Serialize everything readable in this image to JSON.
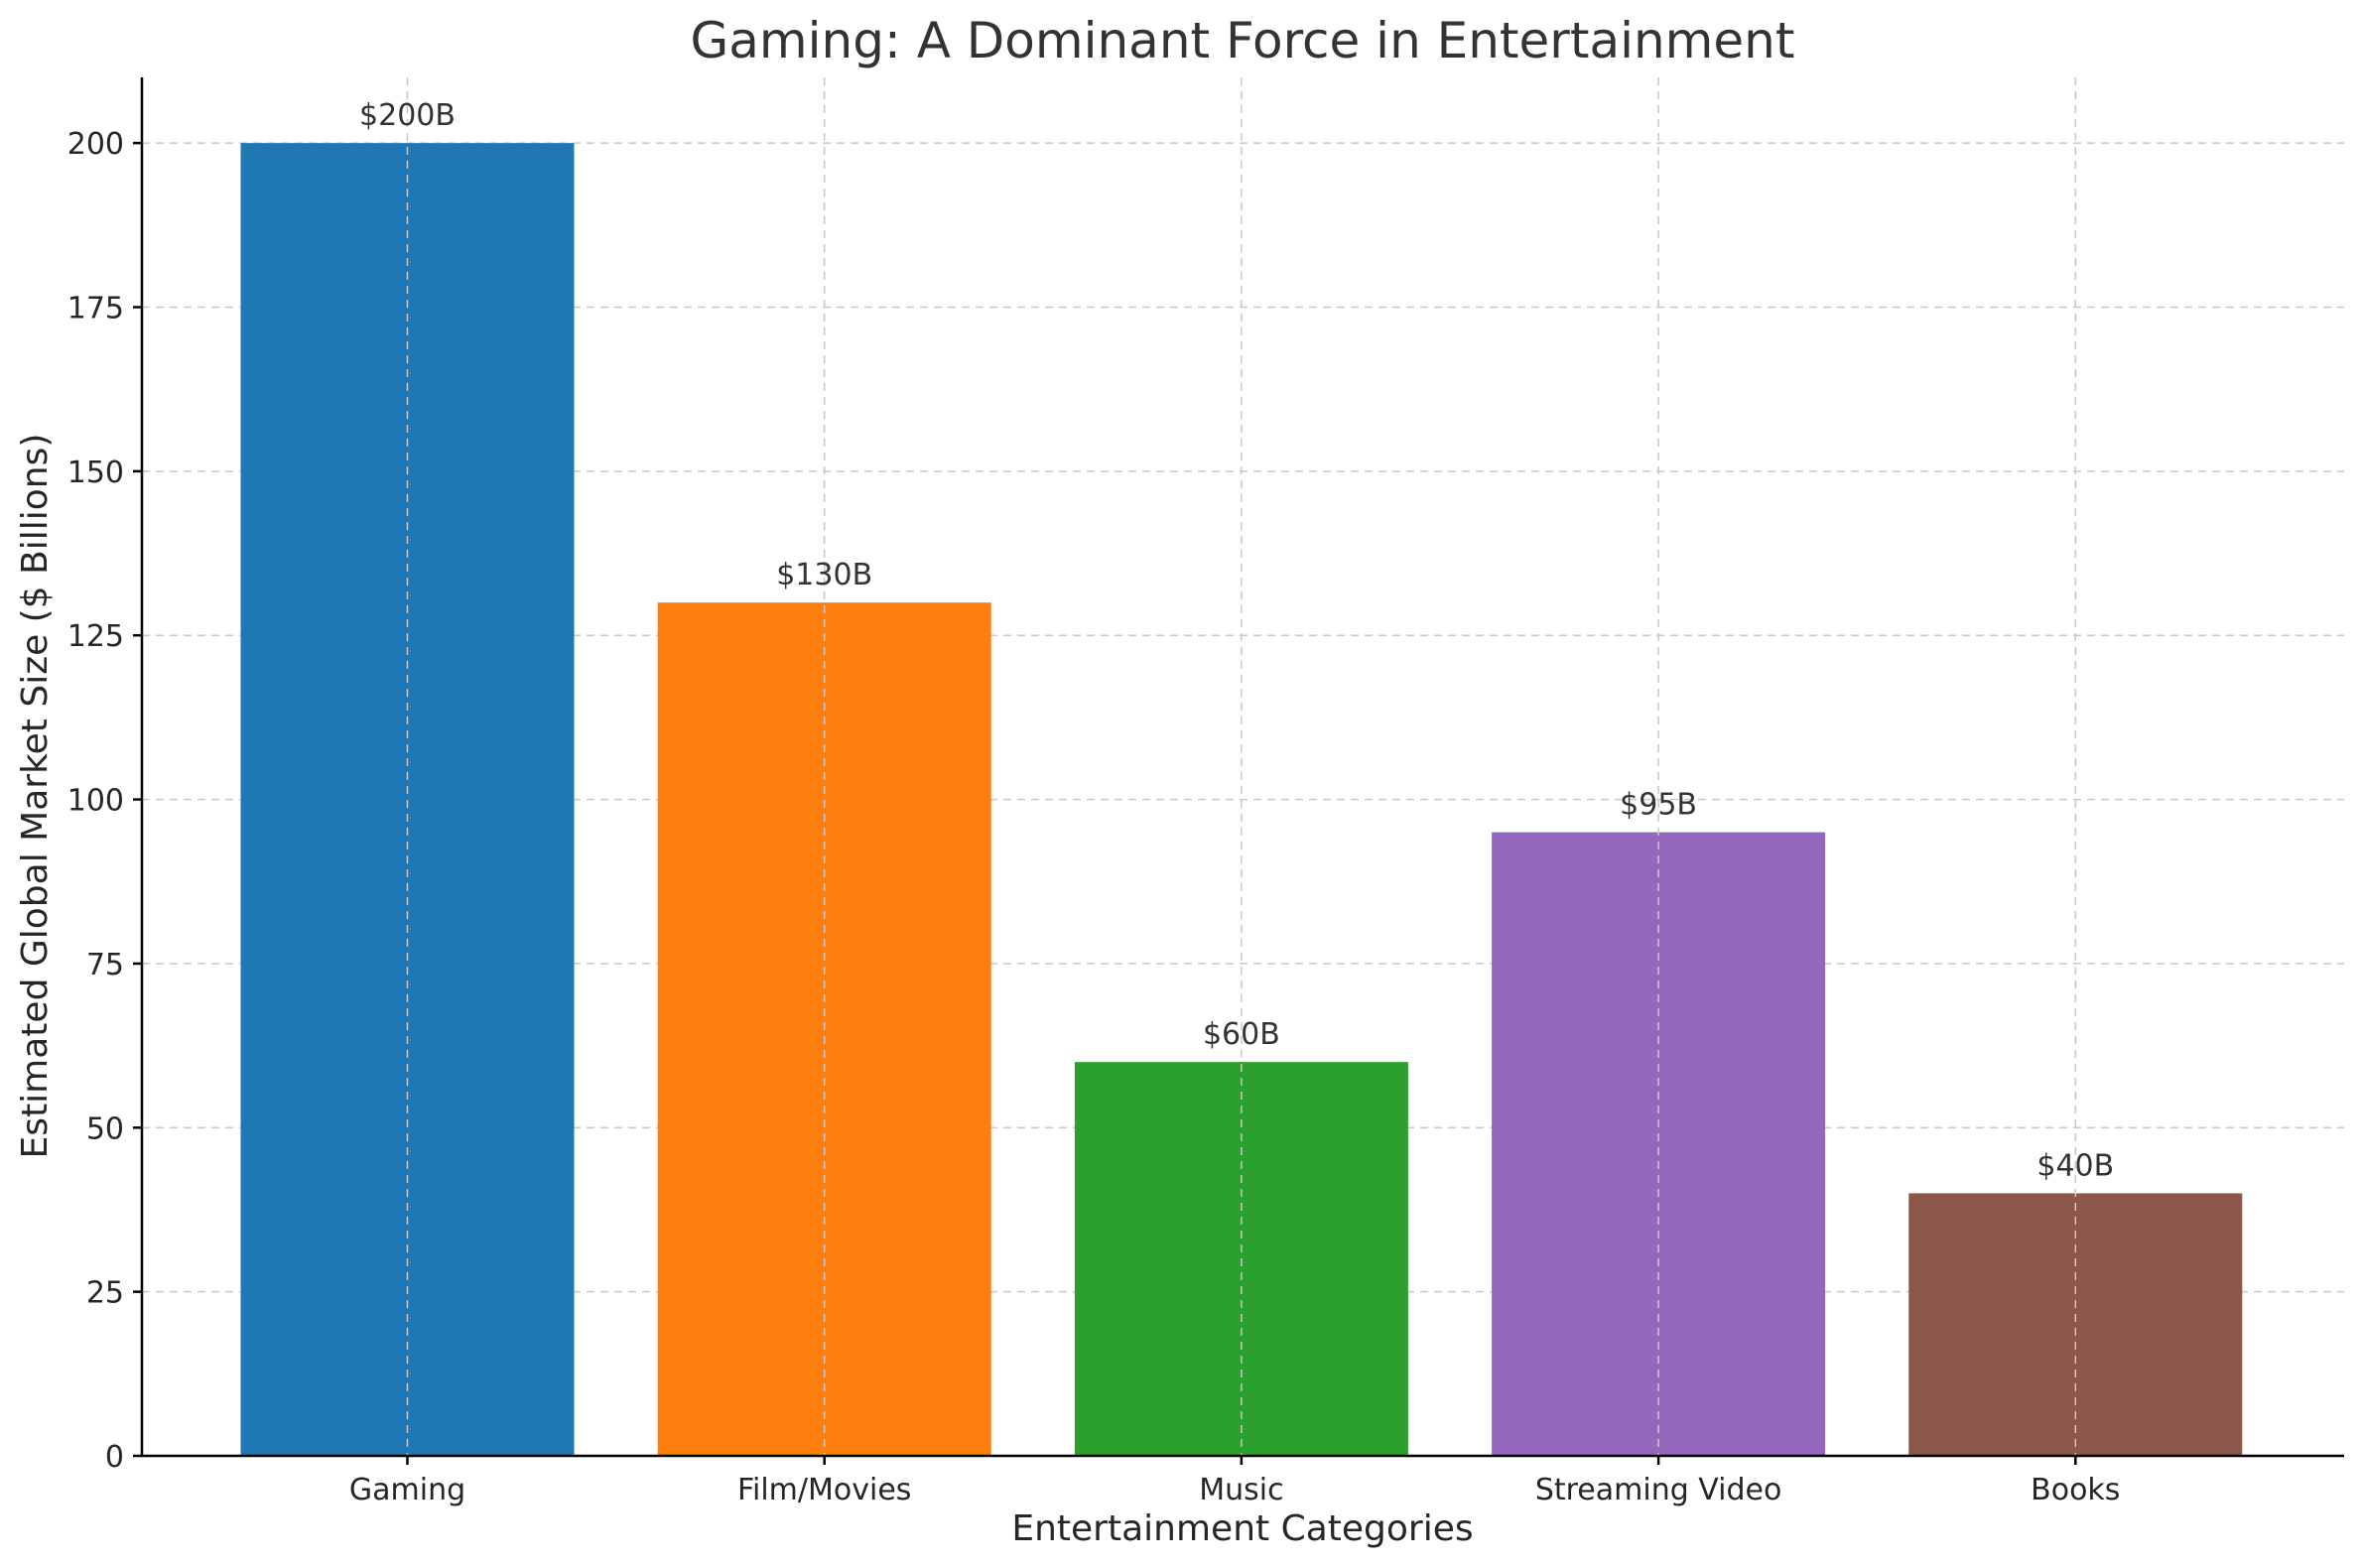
{
  "chart_data": {
    "type": "bar",
    "title": "Gaming: A Dominant Force in Entertainment",
    "xlabel": "Entertainment Categories",
    "ylabel": "Estimated Global Market Size ($ Billions)",
    "categories": [
      "Gaming",
      "Film/Movies",
      "Music",
      "Streaming Video",
      "Books"
    ],
    "values": [
      200,
      130,
      60,
      95,
      40
    ],
    "value_labels": [
      "$200B",
      "$130B",
      "$60B",
      "$95B",
      "$40B"
    ],
    "colors": [
      "#1f77b4",
      "#ff7f0e",
      "#2ca02c",
      "#9467bd",
      "#8c564b"
    ],
    "ylim": [
      0,
      210
    ],
    "yticks": [
      0,
      25,
      50,
      75,
      100,
      125,
      150,
      175,
      200
    ],
    "grid": true,
    "legend": "none"
  }
}
